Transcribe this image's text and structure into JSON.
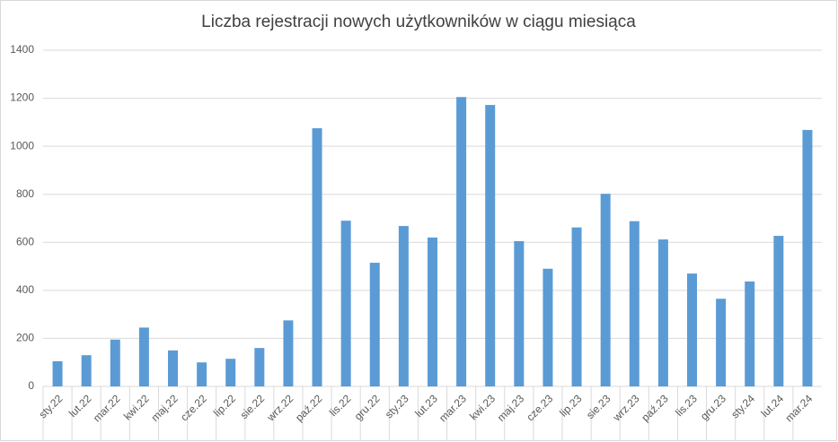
{
  "chart_data": {
    "type": "bar",
    "title": "Liczba rejestracji nowych użytkowników w ciągu miesiąca",
    "categories": [
      "sty.22",
      "lut.22",
      "mar.22",
      "kwi.22",
      "maj.22",
      "cze.22",
      "lip.22",
      "sie.22",
      "wrz.22",
      "paź.22",
      "lis.22",
      "gru.22",
      "sty.23",
      "lut.23",
      "mar.23",
      "kwi.23",
      "maj.23",
      "cze.23",
      "lip.23",
      "sie.23",
      "wrz.23",
      "paź.23",
      "lis.23",
      "gru.23",
      "sty.24",
      "lut.24",
      "mar.24"
    ],
    "values": [
      105,
      130,
      195,
      245,
      150,
      100,
      115,
      160,
      275,
      1075,
      690,
      515,
      668,
      620,
      1205,
      1172,
      605,
      490,
      662,
      802,
      688,
      612,
      470,
      365,
      437,
      627,
      1068
    ],
    "color": "#5b9bd5",
    "ylim": [
      0,
      1400
    ],
    "yticks": [
      0,
      200,
      400,
      600,
      800,
      1000,
      1200,
      1400
    ],
    "grid": true
  }
}
